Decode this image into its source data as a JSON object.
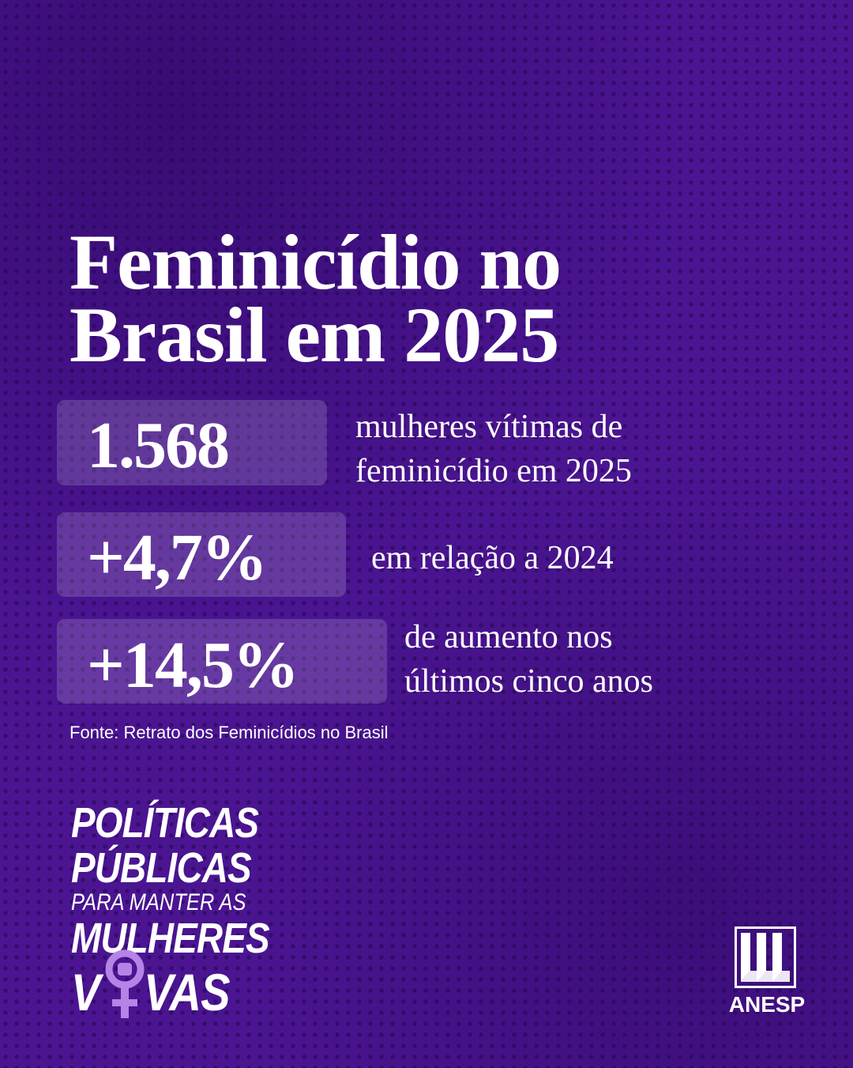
{
  "header": {
    "title_lines": [
      "Feminicídio no",
      "Brasil em 2025"
    ]
  },
  "stats": [
    {
      "figure": "1.568",
      "description_lines": [
        "mulheres vítimas de",
        "feminicídio em 2025"
      ]
    },
    {
      "figure": "+4,7%",
      "description_lines": [
        "em relação a 2024"
      ]
    },
    {
      "figure": "+14,5%",
      "description_lines": [
        "de aumento nos",
        "últimos cinco anos"
      ]
    }
  ],
  "source": "Fonte: Retrato dos Feminicídios no Brasil",
  "campaign": {
    "lines": [
      "POLÍTICAS",
      "PÚBLICAS",
      "PARA MANTER AS",
      "MULHERES"
    ],
    "last_line_parts": [
      "V",
      "VAS"
    ]
  },
  "logo": {
    "name": "ANESP"
  }
}
